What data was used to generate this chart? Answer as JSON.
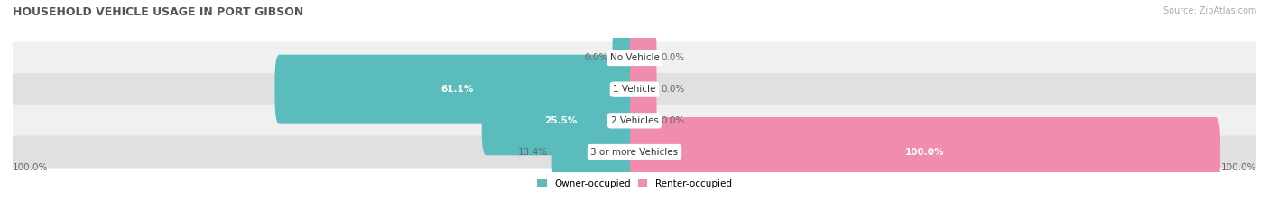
{
  "title": "HOUSEHOLD VEHICLE USAGE IN PORT GIBSON",
  "source": "Source: ZipAtlas.com",
  "categories": [
    "No Vehicle",
    "1 Vehicle",
    "2 Vehicles",
    "3 or more Vehicles"
  ],
  "owner_values": [
    0.0,
    61.1,
    25.5,
    13.4
  ],
  "renter_values": [
    0.0,
    0.0,
    0.0,
    100.0
  ],
  "owner_color": "#5bbcbd",
  "renter_color": "#f08cad",
  "row_bg_colors": [
    "#f0f0f0",
    "#e0e0e0",
    "#f0f0f0",
    "#e0e0e0"
  ],
  "label_color": "#666666",
  "title_color": "#555555",
  "owner_label": "Owner-occupied",
  "renter_label": "Renter-occupied",
  "max_value": 100.0,
  "figsize": [
    14.06,
    2.33
  ],
  "dpi": 100,
  "min_bar_stub": 3.0
}
